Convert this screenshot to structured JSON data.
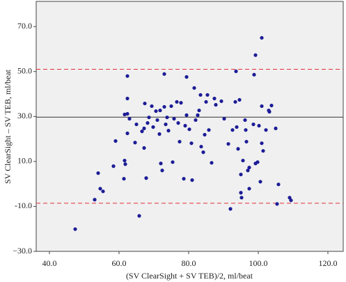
{
  "chart_data": {
    "type": "scatter",
    "x_label": "(SV ClearSight + SV TEB)/2, ml/beat",
    "y_label": "SV ClearSight – SV TEB, ml/beat",
    "color": "#1c1c96",
    "x": [
      47.4,
      53.0,
      54.0,
      54.6,
      55.4,
      58.4,
      59.0,
      61.4,
      61.6,
      61.8,
      62.4,
      61.6,
      62.4,
      62.4,
      62.4,
      63.0,
      64.6,
      65.0,
      65.8,
      66.6,
      67.2,
      67.2,
      67.4,
      67.8,
      68.2,
      68.6,
      69.4,
      69.8,
      70.6,
      71.0,
      71.6,
      71.8,
      72.0,
      72.4,
      73.0,
      73.0,
      73.4,
      73.8,
      74.2,
      75.0,
      75.4,
      75.8,
      76.6,
      77.0,
      77.4,
      77.8,
      78.6,
      79.0,
      79.4,
      79.4,
      80.2,
      80.8,
      81.0,
      81.6,
      82.0,
      82.6,
      83.0,
      83.4,
      83.6,
      84.2,
      84.6,
      85.0,
      85.4,
      85.8,
      86.6,
      87.4,
      87.8,
      89.4,
      90.2,
      91.4,
      92.0,
      92.6,
      93.4,
      93.8,
      94.2,
      95.0,
      95.6,
      96.4,
      96.6,
      97.0,
      97.4,
      101.0,
      99.2,
      98.8,
      93.6,
      94.6,
      96.2,
      101.0,
      103.0,
      103.8,
      103.2,
      105.0,
      100.2,
      98.6,
      102.2,
      105.4,
      105.8,
      109.4,
      109.0,
      101.0,
      101.4,
      99.8,
      100.6,
      99.2,
      97.4,
      95.2,
      95.0
    ],
    "values": [
      -20.1,
      -7.0,
      4.8,
      -2.1,
      -3.3,
      7.9,
      19.1,
      2.3,
      10.4,
      8.8,
      22.5,
      30.9,
      31.2,
      38.0,
      48.0,
      29.0,
      18.4,
      26.5,
      -14.2,
      23.4,
      24.7,
      16.0,
      35.8,
      2.6,
      27.1,
      29.6,
      34.6,
      25.3,
      32.4,
      28.4,
      22.2,
      32.7,
      9.1,
      6.0,
      48.9,
      34.3,
      26.5,
      29.6,
      23.7,
      34.6,
      9.7,
      29.0,
      36.5,
      27.1,
      18.8,
      36.1,
      2.3,
      25.9,
      47.6,
      30.6,
      24.3,
      18.1,
      1.7,
      42.7,
      28.4,
      30.6,
      32.7,
      39.6,
      16.6,
      14.1,
      21.9,
      36.5,
      39.6,
      24.0,
      9.4,
      38.0,
      35.2,
      36.8,
      29.0,
      17.8,
      -11.1,
      24.0,
      36.5,
      25.3,
      15.6,
      4.2,
      10.4,
      24.0,
      18.8,
      6.0,
      7.3,
      65.0,
      57.3,
      48.6,
      50.1,
      37.4,
      28.4,
      34.6,
      32.7,
      34.9,
      32.1,
      24.7,
      25.9,
      26.5,
      24.0,
      -8.9,
      -0.2,
      -7.3,
      -6.1,
      18.1,
      14.7,
      9.7,
      1.0,
      9.1,
      -2.1,
      -6.1,
      -3.9
    ],
    "reference_lines": [
      {
        "value": 51.0,
        "style": "dashed",
        "color": "#e0303a"
      },
      {
        "value": 29.7,
        "style": "solid",
        "color": "#333333"
      },
      {
        "value": -8.6,
        "style": "dashed",
        "color": "#e0303a"
      }
    ],
    "xlim": [
      36.2,
      124.4
    ],
    "ylim": [
      -30,
      81.2
    ],
    "xticks": [
      {
        "value": 40,
        "label": "40.0"
      },
      {
        "value": 60,
        "label": "60.0"
      },
      {
        "value": 80,
        "label": "80.0"
      },
      {
        "value": 100,
        "label": "100.0"
      },
      {
        "value": 120,
        "label": "120.0"
      }
    ],
    "yticks": [
      {
        "value": -30,
        "label": "−30.0"
      },
      {
        "value": -10,
        "label": "-10.0"
      },
      {
        "value": 10,
        "label": "10.0"
      },
      {
        "value": 30,
        "label": "30.0"
      },
      {
        "value": 50,
        "label": "50.0"
      },
      {
        "value": 70,
        "label": "70.0"
      }
    ],
    "background": "#f0f0f0"
  }
}
